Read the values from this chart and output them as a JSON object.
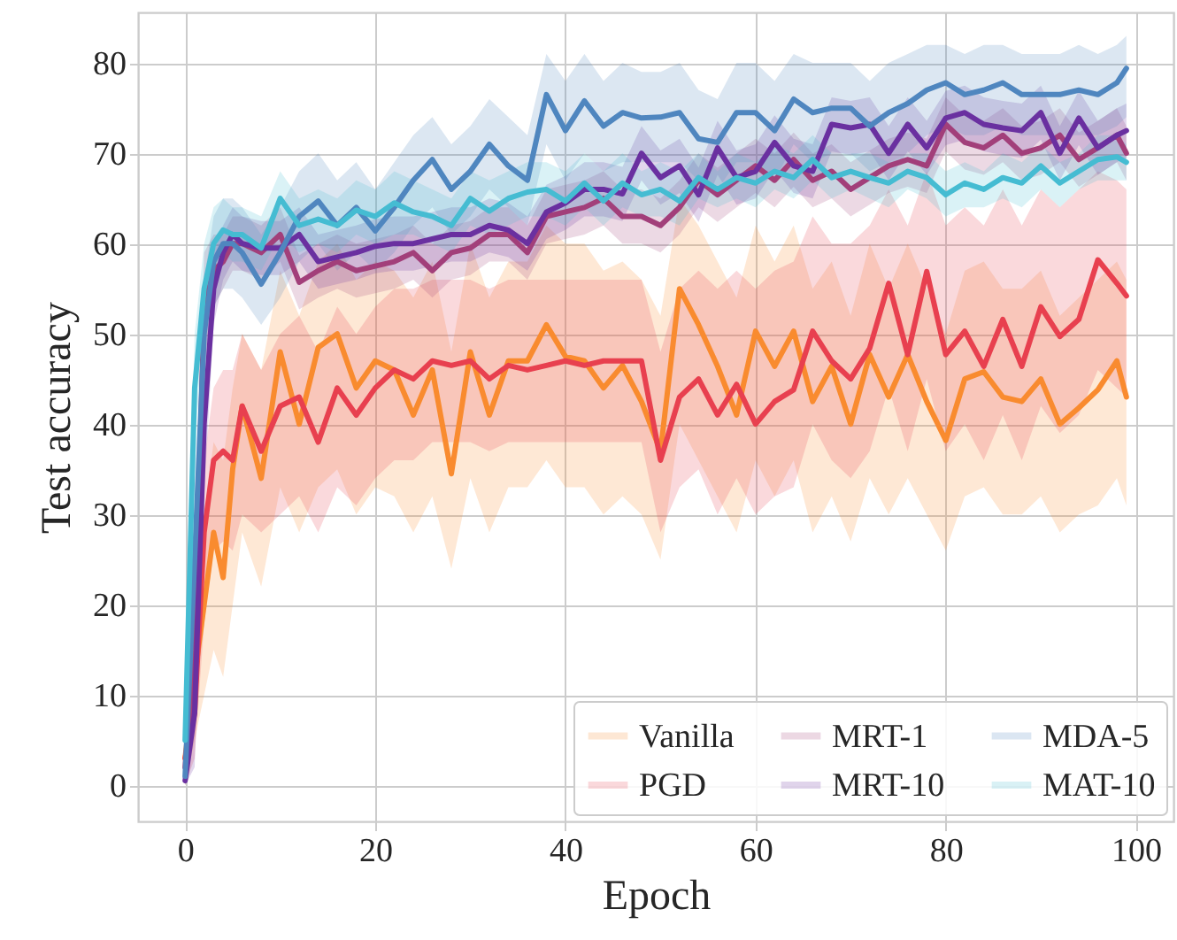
{
  "chart_data": {
    "type": "line",
    "xlabel": "Epoch",
    "ylabel": "Test accuracy",
    "x": [
      0,
      1,
      2,
      3,
      4,
      5,
      6,
      8,
      10,
      12,
      14,
      16,
      18,
      20,
      22,
      24,
      26,
      28,
      30,
      32,
      34,
      36,
      38,
      40,
      42,
      44,
      46,
      48,
      50,
      52,
      54,
      56,
      58,
      60,
      62,
      64,
      66,
      68,
      70,
      72,
      74,
      76,
      78,
      80,
      82,
      84,
      86,
      88,
      90,
      92,
      94,
      96,
      98,
      99
    ],
    "xlim": [
      -4.95,
      103.95
    ],
    "xticks": [
      0,
      20,
      40,
      60,
      80,
      100
    ],
    "ylim": [
      -4,
      85.6
    ],
    "yticks": [
      0,
      10,
      20,
      30,
      40,
      50,
      60,
      70,
      80
    ],
    "grid": true,
    "legend": "bottom right",
    "series": [
      {
        "name": "Vanilla",
        "color": "#f98b2f",
        "values": [
          3,
          12,
          20,
          28,
          23,
          35,
          42,
          34,
          48,
          40,
          48.5,
          50,
          44,
          47,
          46,
          41,
          46,
          34.5,
          48,
          41,
          47,
          47,
          51,
          47.5,
          47,
          44,
          46.5,
          42.5,
          37,
          55,
          51,
          46.4,
          41,
          50.3,
          46.4,
          50.3,
          42.5,
          46.4,
          40,
          47.7,
          43,
          47.7,
          42.5,
          38.2,
          45,
          45.8,
          43,
          42.5,
          45,
          40,
          41.8,
          43.8,
          47,
          43
        ],
        "lower": [
          0,
          5,
          10,
          15,
          12,
          20,
          28,
          22,
          33,
          28,
          33,
          35,
          30,
          33,
          32,
          28,
          32,
          24,
          34,
          28,
          33,
          33,
          36,
          33,
          33,
          30,
          32,
          30,
          25,
          40,
          36,
          32,
          28,
          36,
          32,
          36,
          28,
          32,
          27,
          34,
          30,
          34,
          30,
          26,
          32,
          33,
          30,
          30,
          32,
          28,
          30,
          31,
          34,
          31
        ],
        "upper": [
          6,
          20,
          30,
          38,
          36,
          44,
          50,
          46,
          57,
          52,
          58,
          60,
          56,
          58,
          57,
          54,
          58,
          48,
          60,
          54,
          58,
          58,
          62,
          60,
          60,
          57,
          58,
          56,
          52,
          65,
          62,
          58,
          54,
          62,
          58,
          62,
          55,
          58,
          52,
          60,
          55,
          60,
          55,
          50,
          57,
          58,
          55,
          55,
          57,
          52,
          54,
          56,
          58,
          56
        ]
      },
      {
        "name": "PGD",
        "color": "#e8404f",
        "values": [
          3,
          8,
          28,
          36,
          37,
          36,
          42,
          37,
          42,
          43,
          38,
          44,
          41,
          44,
          46,
          45,
          47,
          46.5,
          47,
          45,
          46.5,
          46,
          46.5,
          47,
          46.5,
          47,
          47,
          47,
          36,
          43,
          45,
          41,
          44.4,
          40,
          42.5,
          43.8,
          50.3,
          47,
          45,
          48.4,
          55.6,
          47.7,
          56.9,
          47.7,
          50.3,
          46.4,
          51.6,
          46.4,
          53,
          49.7,
          51.6,
          58.2,
          55.6,
          54.2
        ],
        "lower": [
          0,
          3,
          18,
          26,
          27,
          26,
          30,
          28,
          30,
          32,
          28,
          33,
          31,
          34,
          36,
          36,
          38,
          38,
          38,
          37,
          38,
          38,
          38,
          38,
          38,
          38,
          38,
          38,
          28,
          33,
          35,
          30,
          34,
          30,
          32,
          33,
          40,
          36,
          34,
          37,
          44,
          37,
          45,
          37,
          40,
          36,
          41,
          36,
          42,
          39,
          41,
          46,
          44,
          43
        ],
        "upper": [
          6,
          14,
          36,
          44,
          46,
          46,
          50,
          46,
          50,
          52,
          48,
          53,
          50,
          53,
          55,
          55,
          56,
          56,
          56,
          55,
          56,
          56,
          56,
          56,
          56,
          56,
          56,
          56,
          48,
          55,
          57,
          55,
          57,
          55,
          57,
          58,
          63,
          60,
          60,
          62,
          66,
          62,
          68,
          62,
          64,
          62,
          66,
          62,
          66,
          64,
          66,
          68,
          67,
          66
        ]
      },
      {
        "name": "MRT-1",
        "color": "#a23f7a",
        "values": [
          2,
          15,
          53,
          57,
          58,
          60,
          60,
          59,
          61,
          55.7,
          57,
          58,
          57,
          57.5,
          58,
          59,
          57,
          59,
          59.5,
          61,
          61,
          59,
          63,
          63.5,
          64,
          65,
          63,
          63,
          62,
          64,
          67,
          65.4,
          67,
          68.6,
          67,
          69.3,
          67,
          68,
          66,
          67.3,
          68.6,
          69.3,
          68.6,
          73.2,
          71.2,
          70.6,
          72,
          70,
          70.6,
          72,
          69.3,
          70.6,
          72,
          70
        ],
        "lower": [
          0,
          8,
          47,
          53,
          55,
          57,
          57,
          56,
          58,
          52.7,
          54,
          55,
          54,
          54.5,
          55,
          56,
          54,
          56,
          56.5,
          58,
          58,
          56,
          60,
          60.5,
          61,
          62,
          60,
          60,
          59,
          61,
          64,
          62.4,
          64,
          65.6,
          64,
          66.3,
          64,
          65,
          63,
          64.3,
          65.6,
          66.3,
          65.6,
          70.2,
          68.2,
          67.6,
          69,
          67,
          67.6,
          69,
          66.3,
          67.6,
          69,
          67
        ],
        "upper": [
          4,
          22,
          59,
          61,
          61,
          63,
          63,
          62,
          64,
          58.7,
          60,
          61,
          60,
          60.5,
          61,
          62,
          60,
          62,
          62.5,
          64,
          64,
          62,
          66,
          66.5,
          67,
          68,
          66,
          66,
          65,
          67,
          70,
          68.4,
          70,
          71.6,
          70,
          72.3,
          70,
          71,
          69,
          70.3,
          71.6,
          72.3,
          71.6,
          76.2,
          74.2,
          73.6,
          75,
          73,
          73.6,
          75,
          72.3,
          73.6,
          75,
          73
        ]
      },
      {
        "name": "MRT-10",
        "color": "#6a30a0",
        "values": [
          0.5,
          8,
          40,
          55,
          59,
          61,
          60,
          59.5,
          59.5,
          61,
          58,
          58.5,
          59,
          59.7,
          60,
          60,
          60.5,
          61,
          61,
          62,
          61.5,
          60,
          63.5,
          64.5,
          66,
          66,
          65.5,
          70,
          67.3,
          68.6,
          65.4,
          70.6,
          67.3,
          68,
          71.2,
          68.6,
          68,
          73.2,
          72.8,
          73.2,
          70,
          73.2,
          70.6,
          73.9,
          74.5,
          73.2,
          72.8,
          72.5,
          74.5,
          70,
          73.9,
          70.6,
          72,
          72.5
        ],
        "lower": [
          0,
          2,
          32,
          51,
          56,
          58,
          57,
          56.5,
          56.5,
          58,
          55,
          55.5,
          56,
          56.7,
          57,
          57,
          57.5,
          58,
          58,
          59,
          58.5,
          57,
          60.5,
          61.5,
          63,
          63,
          62.5,
          67,
          64.3,
          65.6,
          62.4,
          67.6,
          64.3,
          65,
          68.2,
          65.6,
          65,
          70.2,
          69.8,
          70.2,
          67,
          70.2,
          67.6,
          70.9,
          71.5,
          70.2,
          69.8,
          69.5,
          71.5,
          67,
          70.9,
          67.6,
          69,
          69.5
        ],
        "upper": [
          3,
          14,
          48,
          59,
          62,
          64,
          63,
          62.5,
          62.5,
          64,
          61,
          61.5,
          62,
          62.7,
          63,
          63,
          63.5,
          64,
          64,
          65,
          64.5,
          63,
          66.5,
          67.5,
          69,
          69,
          68.5,
          73,
          70.3,
          71.6,
          68.4,
          73.6,
          70.3,
          71,
          74.2,
          71.6,
          71,
          76.2,
          75.8,
          76.2,
          73,
          76.2,
          73.6,
          76.9,
          77.5,
          76.2,
          75.8,
          75.5,
          77.5,
          73,
          76.9,
          73.6,
          75,
          75.5
        ]
      },
      {
        "name": "MDA-5",
        "color": "#4f86bf",
        "values": [
          1,
          25,
          50,
          58,
          60,
          60,
          59,
          55.5,
          59,
          63,
          64.7,
          62,
          64,
          61.4,
          64,
          67,
          69.3,
          66,
          68,
          71,
          68.6,
          67,
          76.5,
          72.5,
          75.8,
          73,
          74.5,
          73.9,
          74,
          74.5,
          71.6,
          71.2,
          74.5,
          74.5,
          72.5,
          76,
          74.5,
          75,
          75,
          73,
          74.5,
          75.5,
          77,
          77.8,
          76.5,
          77,
          77.8,
          76.5,
          76.5,
          76.5,
          77,
          76.5,
          77.8,
          79.4
        ],
        "lower": [
          0,
          18,
          44,
          53,
          55,
          55,
          54,
          51,
          54,
          58,
          60,
          57,
          59,
          57,
          59,
          62,
          64,
          61,
          63,
          66,
          64,
          62,
          71,
          67,
          70,
          68,
          69,
          69,
          69,
          69,
          67,
          66,
          69,
          69,
          67,
          71,
          69,
          70,
          70,
          68,
          69,
          70,
          72,
          73,
          72,
          72,
          73,
          72,
          72,
          72,
          72,
          72,
          73,
          74
        ],
        "upper": [
          3,
          32,
          56,
          63,
          65,
          65,
          64,
          61,
          64,
          68,
          70,
          67,
          69,
          66,
          69,
          72,
          74,
          71,
          73,
          76,
          74,
          72,
          81,
          78,
          81,
          78,
          80,
          79,
          79,
          80,
          77,
          76,
          80,
          80,
          78,
          81,
          80,
          80,
          80,
          78,
          80,
          81,
          82,
          82,
          81,
          82,
          82,
          81,
          81,
          81,
          82,
          81,
          82,
          83
        ]
      },
      {
        "name": "MAT-10",
        "color": "#45bcd2",
        "values": [
          5,
          44,
          55,
          60,
          61.5,
          61,
          61,
          59.5,
          65,
          62,
          62.7,
          62,
          63.7,
          63,
          64.5,
          63.5,
          63,
          62,
          65,
          63.6,
          65,
          65.7,
          66,
          64.7,
          66.7,
          64.7,
          66.7,
          65.4,
          66,
          64.7,
          67.3,
          66,
          67.3,
          66.7,
          68,
          67.3,
          69.3,
          67.3,
          68,
          67.3,
          66.7,
          68,
          67.3,
          65.4,
          66.7,
          66,
          67.3,
          66.7,
          68.6,
          66.7,
          68,
          69.3,
          69.6,
          69
        ],
        "lower": [
          2,
          38,
          50,
          57,
          59,
          58,
          58,
          57,
          61,
          59,
          60,
          59,
          61,
          60,
          61,
          61,
          60,
          59,
          62,
          61,
          62,
          63,
          63,
          62,
          64,
          62,
          64,
          63,
          63,
          62,
          65,
          64,
          65,
          64,
          66,
          65,
          67,
          65,
          66,
          65,
          64,
          66,
          65,
          63,
          64,
          64,
          65,
          64,
          66,
          64,
          66,
          67,
          67,
          67
        ],
        "upper": [
          8,
          50,
          60,
          64,
          65,
          64,
          64,
          63,
          68,
          65,
          66,
          65,
          67,
          66,
          68,
          67,
          66,
          65,
          68,
          67,
          68,
          69,
          69,
          68,
          70,
          68,
          70,
          68,
          69,
          68,
          70,
          68,
          70,
          69,
          71,
          70,
          72,
          70,
          70,
          70,
          69,
          70,
          70,
          68,
          69,
          68,
          70,
          69,
          71,
          69,
          70,
          72,
          72,
          71
        ]
      }
    ]
  }
}
